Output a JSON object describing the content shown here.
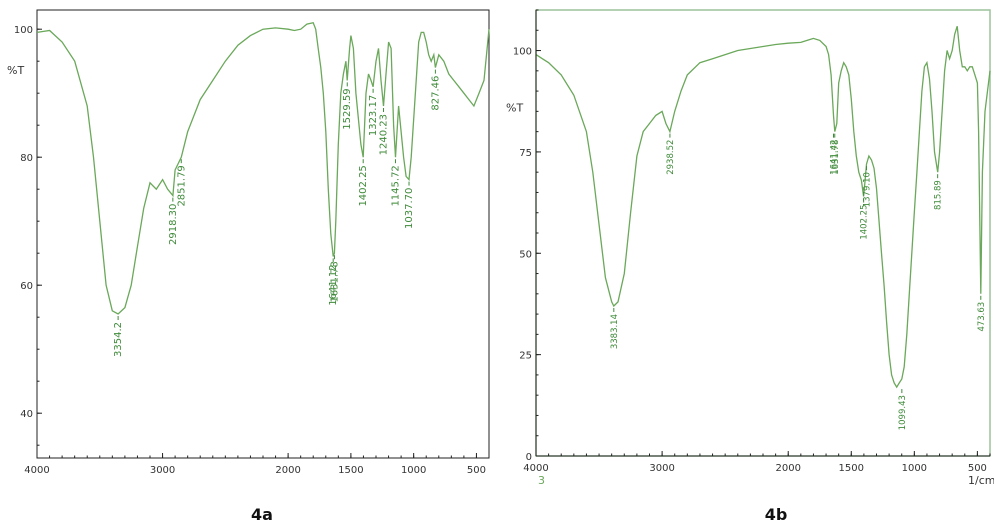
{
  "figure_labels": {
    "left": "4a",
    "right": "4b"
  },
  "colors": {
    "trace": "#6aa85a",
    "peak_label": "#3f8a3a",
    "axis": "#222222",
    "frame_b": "#9cc39a"
  },
  "chart_data": [
    {
      "type": "line",
      "caption": "4a",
      "ylabel": "%T",
      "xlabel": "",
      "xlim": [
        4000,
        400
      ],
      "ylim": [
        33,
        103
      ],
      "xticks": [
        4000,
        3000,
        2000,
        1500,
        1000,
        500
      ],
      "xtick_labels": [
        "4000",
        "3000",
        "2000",
        "1500",
        "1000",
        "500"
      ],
      "yticks": [
        100,
        80,
        60,
        40
      ],
      "ytick_labels": [
        "100",
        "80",
        "60",
        "40"
      ],
      "grid": false,
      "series": [
        {
          "x": [
            4000,
            3900,
            3800,
            3700,
            3600,
            3550,
            3500,
            3450,
            3400,
            3354,
            3300,
            3250,
            3200,
            3150,
            3100,
            3050,
            3000,
            2960,
            2918,
            2900,
            2851,
            2800,
            2700,
            2600,
            2500,
            2400,
            2300,
            2200,
            2100,
            2000,
            1950,
            1900,
            1850,
            1800,
            1780,
            1760,
            1740,
            1720,
            1700,
            1680,
            1660,
            1641,
            1631,
            1620,
            1600,
            1580,
            1560,
            1540,
            1529,
            1510,
            1500,
            1480,
            1460,
            1440,
            1420,
            1402,
            1380,
            1360,
            1340,
            1323,
            1300,
            1280,
            1260,
            1240,
            1220,
            1200,
            1180,
            1160,
            1145,
            1120,
            1100,
            1080,
            1060,
            1037,
            1020,
            1000,
            980,
            960,
            940,
            920,
            900,
            880,
            860,
            840,
            827,
            800,
            760,
            720,
            680,
            640,
            600,
            560,
            520,
            480,
            440,
            420,
            400
          ],
          "y": [
            99.5,
            99.8,
            98,
            95,
            88,
            80,
            70,
            60,
            56,
            55.5,
            56.5,
            60,
            66,
            72,
            76,
            75,
            76.5,
            75,
            74,
            78,
            80,
            84,
            89,
            92,
            95,
            97.5,
            99,
            100,
            100.2,
            100,
            99.8,
            100,
            100.8,
            101,
            100,
            97,
            94,
            90,
            84,
            75,
            68,
            64.5,
            65,
            70,
            82,
            90,
            93,
            95,
            92,
            97,
            99,
            97,
            90,
            86,
            82,
            80,
            90,
            93,
            92,
            91,
            95,
            97,
            92,
            88,
            93,
            98,
            97,
            85,
            80,
            88,
            84,
            80,
            77,
            76.5,
            80,
            86,
            92,
            98,
            99.5,
            99.5,
            98,
            96,
            95,
            96,
            94,
            96,
            95,
            93,
            92,
            91,
            90,
            89,
            88,
            90,
            92,
            96,
            100
          ]
        }
      ],
      "peak_labels": [
        {
          "text": "3354.2",
          "x": 3354,
          "y": 55.5
        },
        {
          "text": "2918.30",
          "x": 2918,
          "y": 74
        },
        {
          "text": "2851.79",
          "x": 2851,
          "y": 80
        },
        {
          "text": "1641.12",
          "x": 1641,
          "y": 64.5
        },
        {
          "text": "1631.78",
          "x": 1631,
          "y": 65
        },
        {
          "text": "1529.59",
          "x": 1529,
          "y": 92
        },
        {
          "text": "1402.25",
          "x": 1402,
          "y": 80
        },
        {
          "text": "1323.17",
          "x": 1323,
          "y": 91
        },
        {
          "text": "1240.23",
          "x": 1240,
          "y": 88
        },
        {
          "text": "1145.72",
          "x": 1145,
          "y": 80
        },
        {
          "text": "1037.70",
          "x": 1037,
          "y": 76.5
        },
        {
          "text": "827.46",
          "x": 827,
          "y": 94
        }
      ]
    },
    {
      "type": "line",
      "caption": "4b",
      "ylabel": "%T",
      "xlabel": "1/cm",
      "corner_label": "3",
      "xlim": [
        4000,
        400
      ],
      "ylim": [
        0,
        110
      ],
      "xticks": [
        4000,
        3000,
        2000,
        1500,
        1000,
        500
      ],
      "xtick_labels": [
        "4000",
        "3000",
        "2000",
        "1500",
        "1000",
        "500"
      ],
      "yticks": [
        100,
        75,
        50,
        25,
        0
      ],
      "ytick_labels": [
        "100",
        "75",
        "50",
        "25",
        "0"
      ],
      "grid": false,
      "series": [
        {
          "x": [
            4000,
            3950,
            3900,
            3800,
            3700,
            3600,
            3550,
            3500,
            3450,
            3400,
            3383,
            3350,
            3300,
            3250,
            3200,
            3150,
            3100,
            3050,
            3000,
            2970,
            2938,
            2900,
            2850,
            2800,
            2700,
            2600,
            2500,
            2400,
            2300,
            2200,
            2100,
            2000,
            1900,
            1850,
            1800,
            1750,
            1700,
            1680,
            1660,
            1641,
            1631,
            1615,
            1600,
            1580,
            1560,
            1540,
            1520,
            1500,
            1480,
            1460,
            1440,
            1420,
            1402,
            1390,
            1379,
            1360,
            1340,
            1320,
            1300,
            1280,
            1260,
            1240,
            1220,
            1200,
            1180,
            1160,
            1140,
            1120,
            1099,
            1080,
            1060,
            1040,
            1020,
            1000,
            980,
            960,
            940,
            920,
            900,
            880,
            860,
            840,
            815,
            800,
            780,
            760,
            740,
            720,
            700,
            680,
            660,
            640,
            620,
            600,
            580,
            560,
            540,
            520,
            500,
            490,
            473,
            460,
            440,
            420,
            400
          ],
          "y": [
            99,
            98,
            97,
            94,
            89,
            80,
            70,
            57,
            44,
            38,
            37,
            38,
            45,
            60,
            74,
            80,
            82,
            84,
            85,
            82,
            80,
            85,
            90,
            94,
            97,
            98,
            99,
            100,
            100.5,
            101,
            101.5,
            101.8,
            102,
            102.5,
            103,
            102.5,
            101,
            99,
            94,
            84,
            80,
            82,
            92,
            95,
            97,
            96,
            94,
            88,
            80,
            74,
            70,
            68,
            64,
            68,
            72,
            74,
            73,
            71,
            66,
            58,
            50,
            42,
            33,
            25,
            20,
            18,
            17,
            18,
            19,
            22,
            30,
            40,
            50,
            60,
            70,
            80,
            90,
            96,
            97,
            93,
            85,
            75,
            70,
            75,
            85,
            95,
            100,
            98,
            100,
            104,
            106,
            100,
            96,
            96,
            95,
            96,
            96,
            94,
            92,
            80,
            40,
            70,
            85,
            90,
            95
          ]
        }
      ],
      "peak_labels": [
        {
          "text": "3383.14",
          "x": 3383,
          "y": 37
        },
        {
          "text": "2938.52",
          "x": 2938,
          "y": 80
        },
        {
          "text": "1641.42",
          "x": 1641,
          "y": 80
        },
        {
          "text": "1631.78",
          "x": 1631,
          "y": 80
        },
        {
          "text": "1402.25",
          "x": 1402,
          "y": 64
        },
        {
          "text": "1379.10",
          "x": 1379,
          "y": 72
        },
        {
          "text": "1099.43",
          "x": 1099,
          "y": 17
        },
        {
          "text": "815.89",
          "x": 815,
          "y": 70
        },
        {
          "text": "473.63",
          "x": 473,
          "y": 40
        }
      ]
    }
  ]
}
